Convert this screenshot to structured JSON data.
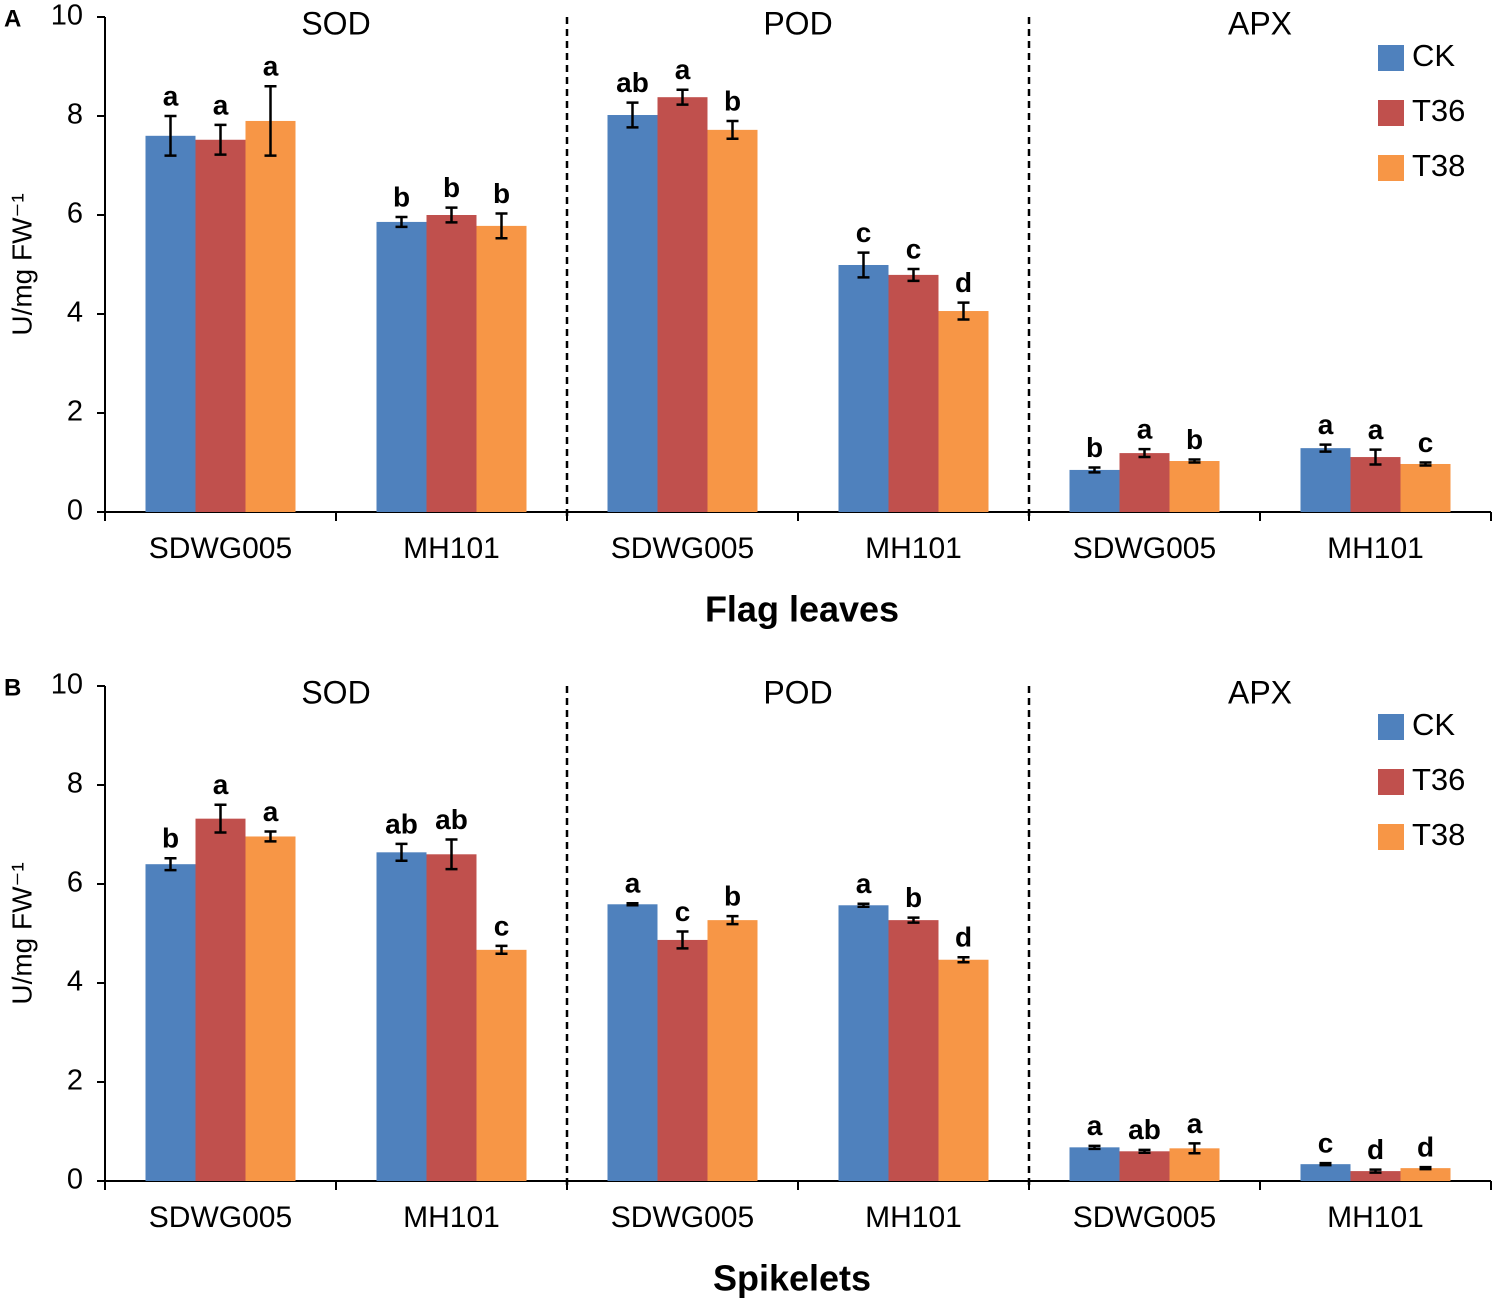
{
  "chart_data": [
    {
      "type": "bar",
      "panel": "A",
      "ylabel": "U/mg FW⁻¹",
      "xlabel": "Flag leaves",
      "groups": [
        "SOD",
        "POD",
        "APX"
      ],
      "categories": [
        "SDWG005",
        "MH101",
        "SDWG005",
        "MH101",
        "SDWG005",
        "MH101"
      ],
      "ylim": [
        0,
        10
      ],
      "yticks": [
        0,
        2,
        4,
        6,
        8,
        10
      ],
      "legend": "upper right",
      "series": [
        {
          "name": "CK",
          "color": "#4f81bd",
          "values": [
            7.6,
            5.86,
            8.02,
            4.99,
            0.85,
            1.29
          ],
          "errors": [
            0.4,
            0.1,
            0.25,
            0.25,
            0.05,
            0.07
          ],
          "letters": [
            "a",
            "b",
            "ab",
            "c",
            "b",
            "a"
          ]
        },
        {
          "name": "T36",
          "color": "#c0504d",
          "values": [
            7.52,
            6.0,
            8.38,
            4.79,
            1.19,
            1.11
          ],
          "errors": [
            0.3,
            0.15,
            0.15,
            0.12,
            0.08,
            0.15
          ],
          "letters": [
            "a",
            "b",
            "a",
            "c",
            "a",
            "a"
          ]
        },
        {
          "name": "T38",
          "color": "#f79646",
          "values": [
            7.9,
            5.78,
            7.72,
            4.06,
            1.03,
            0.97
          ],
          "errors": [
            0.7,
            0.25,
            0.18,
            0.17,
            0.03,
            0.03
          ],
          "letters": [
            "a",
            "b",
            "b",
            "d",
            "b",
            "c"
          ]
        }
      ]
    },
    {
      "type": "bar",
      "panel": "B",
      "ylabel": "U/mg FW⁻¹",
      "xlabel": "Spikelets",
      "groups": [
        "SOD",
        "POD",
        "APX"
      ],
      "categories": [
        "SDWG005",
        "MH101",
        "SDWG005",
        "MH101",
        "SDWG005",
        "MH101"
      ],
      "ylim": [
        0,
        10
      ],
      "yticks": [
        0,
        2,
        4,
        6,
        8,
        10
      ],
      "legend": "upper right",
      "series": [
        {
          "name": "CK",
          "color": "#4f81bd",
          "values": [
            6.4,
            6.64,
            5.59,
            5.57,
            0.68,
            0.34
          ],
          "errors": [
            0.12,
            0.17,
            0.02,
            0.03,
            0.03,
            0.02
          ],
          "letters": [
            "b",
            "ab",
            "a",
            "a",
            "a",
            "c"
          ]
        },
        {
          "name": "T36",
          "color": "#c0504d",
          "values": [
            7.32,
            6.6,
            4.87,
            5.27,
            0.6,
            0.2
          ],
          "errors": [
            0.28,
            0.3,
            0.17,
            0.05,
            0.03,
            0.03
          ],
          "letters": [
            "a",
            "ab",
            "c",
            "b",
            "ab",
            "d"
          ]
        },
        {
          "name": "T38",
          "color": "#f79646",
          "values": [
            6.96,
            4.67,
            5.27,
            4.47,
            0.66,
            0.26
          ],
          "errors": [
            0.1,
            0.08,
            0.08,
            0.05,
            0.1,
            0.02
          ],
          "letters": [
            "a",
            "c",
            "b",
            "d",
            "a",
            "d"
          ]
        }
      ]
    }
  ]
}
